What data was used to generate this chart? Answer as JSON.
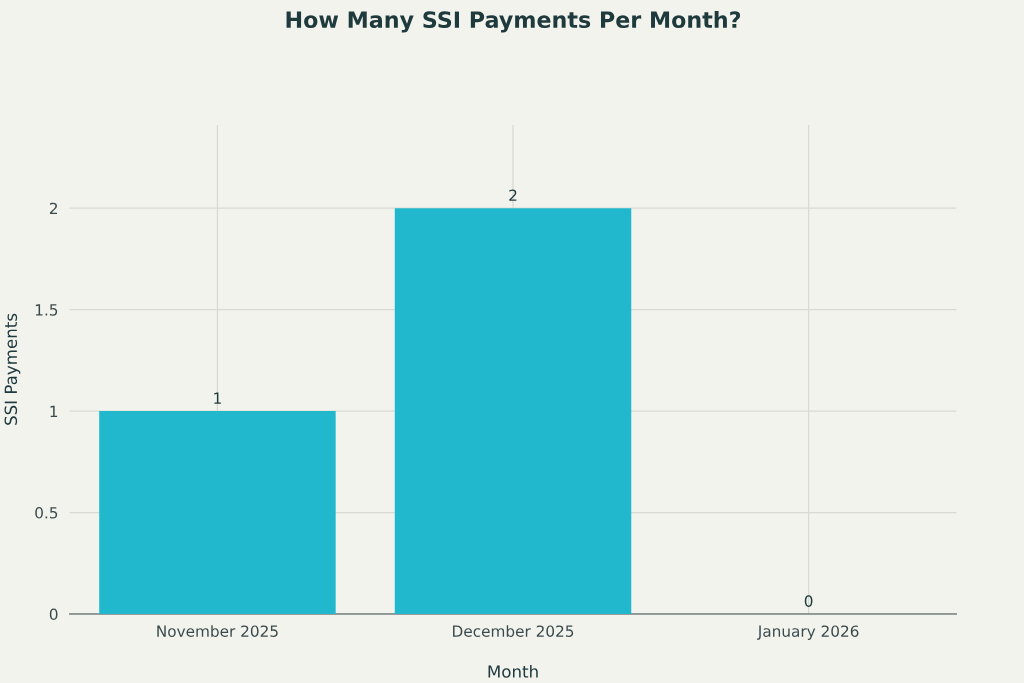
{
  "chart_data": {
    "type": "bar",
    "title": "How Many SSI Payments Per Month?",
    "xlabel": "Month",
    "ylabel": "SSI Payments",
    "categories": [
      "November 2025",
      "December 2025",
      "January 2026"
    ],
    "values": [
      1,
      2,
      0
    ],
    "color": "#21b8cd",
    "ylim": [
      0,
      2.41
    ],
    "yticks": [
      0,
      0.5,
      1,
      1.5,
      2
    ],
    "grid": true,
    "data_labels": true
  }
}
